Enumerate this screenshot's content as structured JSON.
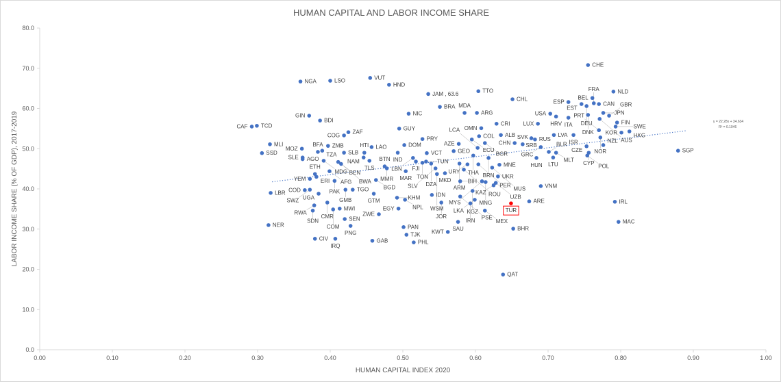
{
  "chart_data": {
    "type": "scatter",
    "title": "HUMAN CAPITAL AND LABOR INCOME SHARE",
    "xlabel": "HUMAN CAPITAL INDEX 2020",
    "ylabel": "LABOR INCOME SHARE (% OF GDP), 2017-2019",
    "xlim": [
      0,
      1.0
    ],
    "ylim": [
      0,
      80
    ],
    "x_ticks": [
      "0.00",
      "0.10",
      "0.20",
      "0.30",
      "0.40",
      "0.50",
      "0.60",
      "0.70",
      "0.80",
      "0.90",
      "1.00"
    ],
    "y_ticks": [
      "0.0",
      "10.0",
      "20.0",
      "30.0",
      "40.0",
      "50.0",
      "60.0",
      "70.0",
      "80.0"
    ],
    "grid": false,
    "point_color": "#4472c4",
    "highlight_color": "#ff0000",
    "trendline": {
      "slope": 22.28,
      "intercept": 34.634,
      "x_range": [
        0.32,
        0.89
      ],
      "equation": "y = 22.28x + 34.634",
      "r2": "R² = 0.1046",
      "style": "dotted"
    },
    "points": [
      {
        "label": "CHE",
        "x": 0.755,
        "y": 70.8
      },
      {
        "label": "NGA",
        "x": 0.359,
        "y": 66.7
      },
      {
        "label": "LSO",
        "x": 0.4,
        "y": 66.9
      },
      {
        "label": "VUT",
        "x": 0.455,
        "y": 67.6
      },
      {
        "label": "HND",
        "x": 0.481,
        "y": 65.9
      },
      {
        "label": "JAM , 63.6",
        "x": 0.535,
        "y": 63.6
      },
      {
        "label": "TTO",
        "x": 0.604,
        "y": 64.3
      },
      {
        "label": "CHL",
        "x": 0.651,
        "y": 62.3
      },
      {
        "label": "NLD",
        "x": 0.79,
        "y": 64.2
      },
      {
        "label": "BEL",
        "x": 0.761,
        "y": 62.6
      },
      {
        "label": "CAN",
        "x": 0.77,
        "y": 61.1
      },
      {
        "label": "ESP",
        "x": 0.728,
        "y": 61.6
      },
      {
        "label": "EST",
        "x": 0.746,
        "y": 61.1
      },
      {
        "label": "FRA",
        "x": 0.763,
        "y": 61.3
      },
      {
        "label": "DEU",
        "x": 0.753,
        "y": 60.6
      },
      {
        "label": "BRA",
        "x": 0.551,
        "y": 60.4
      },
      {
        "label": "MDA",
        "x": 0.585,
        "y": 58.9
      },
      {
        "label": "ARG",
        "x": 0.602,
        "y": 58.9
      },
      {
        "label": "NIC",
        "x": 0.508,
        "y": 58.7
      },
      {
        "label": "USA",
        "x": 0.703,
        "y": 58.7
      },
      {
        "label": "HRV",
        "x": 0.711,
        "y": 58.0
      },
      {
        "label": "ITA",
        "x": 0.728,
        "y": 57.7
      },
      {
        "label": "DNK",
        "x": 0.755,
        "y": 58.4
      },
      {
        "label": "JPN",
        "x": 0.776,
        "y": 58.9
      },
      {
        "label": "GBR",
        "x": 0.784,
        "y": 58.2
      },
      {
        "label": "AUS",
        "x": 0.771,
        "y": 57.4
      },
      {
        "label": "GIN",
        "x": 0.371,
        "y": 58.2
      },
      {
        "label": "BDI",
        "x": 0.386,
        "y": 57.0
      },
      {
        "label": "LUX",
        "x": 0.686,
        "y": 56.2
      },
      {
        "label": "CRI",
        "x": 0.629,
        "y": 56.2
      },
      {
        "label": "FIN",
        "x": 0.795,
        "y": 56.5
      },
      {
        "label": "SWE",
        "x": 0.793,
        "y": 55.5
      },
      {
        "label": "KOR",
        "x": 0.801,
        "y": 54.0
      },
      {
        "label": "HKG",
        "x": 0.812,
        "y": 54.3
      },
      {
        "label": "NOR",
        "x": 0.772,
        "y": 52.8
      },
      {
        "label": "TCD",
        "x": 0.299,
        "y": 55.7
      },
      {
        "label": "CAF",
        "x": 0.292,
        "y": 55.5
      },
      {
        "label": "GUY",
        "x": 0.495,
        "y": 55.0
      },
      {
        "label": "OMN",
        "x": 0.608,
        "y": 55.1
      },
      {
        "label": "PRT",
        "x": 0.77,
        "y": 54.6
      },
      {
        "label": "ZAF",
        "x": 0.425,
        "y": 54.1
      },
      {
        "label": "COG",
        "x": 0.419,
        "y": 53.3
      },
      {
        "label": "ALB",
        "x": 0.635,
        "y": 53.4
      },
      {
        "label": "LVA",
        "x": 0.708,
        "y": 53.4
      },
      {
        "label": "ISR",
        "x": 0.735,
        "y": 53.4
      },
      {
        "label": "COL",
        "x": 0.605,
        "y": 53.1
      },
      {
        "label": "ECU",
        "x": 0.595,
        "y": 52.3
      },
      {
        "label": "PRY",
        "x": 0.527,
        "y": 52.4
      },
      {
        "label": "SRB",
        "x": 0.677,
        "y": 52.6
      },
      {
        "label": "RUS",
        "x": 0.682,
        "y": 52.3
      },
      {
        "label": "CHN",
        "x": 0.654,
        "y": 51.4
      },
      {
        "label": "SVK",
        "x": 0.665,
        "y": 51.1
      },
      {
        "label": "MLI",
        "x": 0.317,
        "y": 51.1
      },
      {
        "label": "ZMB",
        "x": 0.397,
        "y": 50.7
      },
      {
        "label": "DOM",
        "x": 0.502,
        "y": 50.9
      },
      {
        "label": "AZE",
        "x": 0.577,
        "y": 51.2
      },
      {
        "label": "BGR",
        "x": 0.613,
        "y": 51.4
      },
      {
        "label": "GRC",
        "x": 0.69,
        "y": 50.4
      },
      {
        "label": "NZL",
        "x": 0.776,
        "y": 50.9
      },
      {
        "label": "MOZ",
        "x": 0.361,
        "y": 50.0
      },
      {
        "label": "LAO",
        "x": 0.457,
        "y": 50.4
      },
      {
        "label": "GEO",
        "x": 0.57,
        "y": 49.4
      },
      {
        "label": "LCA",
        "x": 0.603,
        "y": 50.2
      },
      {
        "label": "CZE",
        "x": 0.753,
        "y": 50.6
      },
      {
        "label": "BFA",
        "x": 0.383,
        "y": 49.2
      },
      {
        "label": "TZA",
        "x": 0.389,
        "y": 49.5
      },
      {
        "label": "SLB",
        "x": 0.419,
        "y": 49.0
      },
      {
        "label": "HTI",
        "x": 0.447,
        "y": 49.0
      },
      {
        "label": "IND",
        "x": 0.493,
        "y": 49.0
      },
      {
        "label": "VCT",
        "x": 0.533,
        "y": 48.9
      },
      {
        "label": "SSD",
        "x": 0.306,
        "y": 48.9
      },
      {
        "label": "SGP",
        "x": 0.879,
        "y": 49.5
      },
      {
        "label": "BLR",
        "x": 0.701,
        "y": 49.2
      },
      {
        "label": "MLT",
        "x": 0.711,
        "y": 49.0
      },
      {
        "label": "CYP",
        "x": 0.756,
        "y": 49.0
      },
      {
        "label": "POL",
        "x": 0.754,
        "y": 48.3
      },
      {
        "label": "SLE",
        "x": 0.362,
        "y": 47.8
      },
      {
        "label": "AGO",
        "x": 0.362,
        "y": 47.4
      },
      {
        "label": "NAM",
        "x": 0.446,
        "y": 47.8
      },
      {
        "label": "TLS",
        "x": 0.454,
        "y": 47.0
      },
      {
        "label": "MDG",
        "x": 0.391,
        "y": 47.0
      },
      {
        "label": "BEN",
        "x": 0.411,
        "y": 46.7
      },
      {
        "label": "BWA",
        "x": 0.415,
        "y": 46.2
      },
      {
        "label": "LBN",
        "x": 0.514,
        "y": 47.7
      },
      {
        "label": "THA",
        "x": 0.597,
        "y": 48.3
      },
      {
        "label": "BRN",
        "x": 0.618,
        "y": 47.7
      },
      {
        "label": "HUN",
        "x": 0.684,
        "y": 47.7
      },
      {
        "label": "LTU",
        "x": 0.707,
        "y": 47.8
      },
      {
        "label": "FJI",
        "x": 0.518,
        "y": 46.8
      },
      {
        "label": "TUN",
        "x": 0.532,
        "y": 46.8
      },
      {
        "label": "TON",
        "x": 0.527,
        "y": 46.5
      },
      {
        "label": "DZA",
        "x": 0.539,
        "y": 46.3
      },
      {
        "label": "BTN",
        "x": 0.475,
        "y": 45.6
      },
      {
        "label": "MMR",
        "x": 0.478,
        "y": 45.1
      },
      {
        "label": "ARM",
        "x": 0.578,
        "y": 46.3
      },
      {
        "label": "URY",
        "x": 0.589,
        "y": 46.1
      },
      {
        "label": "PER",
        "x": 0.604,
        "y": 46.1
      },
      {
        "label": "MNE",
        "x": 0.633,
        "y": 46.0
      },
      {
        "label": "MAR",
        "x": 0.504,
        "y": 44.4
      },
      {
        "label": "SLV",
        "x": 0.545,
        "y": 45.1
      },
      {
        "label": "WSM",
        "x": 0.547,
        "y": 43.7
      },
      {
        "label": "MKD",
        "x": 0.558,
        "y": 43.9
      },
      {
        "label": "ROU",
        "x": 0.584,
        "y": 44.8
      },
      {
        "label": "MUS",
        "x": 0.623,
        "y": 45.3
      },
      {
        "label": "ETH",
        "x": 0.379,
        "y": 43.7
      },
      {
        "label": "AFG",
        "x": 0.399,
        "y": 44.4
      },
      {
        "label": "ERI",
        "x": 0.381,
        "y": 43.0
      },
      {
        "label": "YEM",
        "x": 0.372,
        "y": 42.5
      },
      {
        "label": "PAK",
        "x": 0.406,
        "y": 42.0
      },
      {
        "label": "BGD",
        "x": 0.463,
        "y": 42.2
      },
      {
        "label": "MYS",
        "x": 0.609,
        "y": 41.9
      },
      {
        "label": "MNG",
        "x": 0.614,
        "y": 41.7
      },
      {
        "label": "UKR",
        "x": 0.631,
        "y": 43.1
      },
      {
        "label": "UZB",
        "x": 0.628,
        "y": 41.5
      },
      {
        "label": "KAZ",
        "x": 0.625,
        "y": 40.9
      },
      {
        "label": "BIH",
        "x": 0.579,
        "y": 41.9
      },
      {
        "label": "VNM",
        "x": 0.69,
        "y": 40.7
      },
      {
        "label": "KGZ",
        "x": 0.596,
        "y": 39.5
      },
      {
        "label": "LBR",
        "x": 0.318,
        "y": 39.0
      },
      {
        "label": "COD",
        "x": 0.365,
        "y": 39.7
      },
      {
        "label": "SWZ",
        "x": 0.372,
        "y": 39.8
      },
      {
        "label": "UGA",
        "x": 0.384,
        "y": 38.8
      },
      {
        "label": "GMB",
        "x": 0.421,
        "y": 39.8
      },
      {
        "label": "TGO",
        "x": 0.431,
        "y": 39.8
      },
      {
        "label": "GTM",
        "x": 0.46,
        "y": 38.8
      },
      {
        "label": "IDN",
        "x": 0.54,
        "y": 38.5
      },
      {
        "label": "KHM",
        "x": 0.492,
        "y": 37.8
      },
      {
        "label": "NPL",
        "x": 0.503,
        "y": 37.3
      },
      {
        "label": "PSE",
        "x": 0.579,
        "y": 38.1
      },
      {
        "label": "LKA",
        "x": 0.599,
        "y": 37.3
      },
      {
        "label": "IRL",
        "x": 0.792,
        "y": 36.8
      },
      {
        "label": "ARE",
        "x": 0.674,
        "y": 36.9
      },
      {
        "label": "TUR",
        "x": 0.649,
        "y": 36.4,
        "highlight": true
      },
      {
        "label": "JOR",
        "x": 0.553,
        "y": 36.6
      },
      {
        "label": "IRN",
        "x": 0.593,
        "y": 36.4
      },
      {
        "label": "CMR",
        "x": 0.396,
        "y": 36.6
      },
      {
        "label": "RWA",
        "x": 0.378,
        "y": 35.9
      },
      {
        "label": "MWI",
        "x": 0.413,
        "y": 35.1
      },
      {
        "label": "COM",
        "x": 0.404,
        "y": 34.9
      },
      {
        "label": "SDN",
        "x": 0.376,
        "y": 34.6
      },
      {
        "label": "EGY",
        "x": 0.494,
        "y": 35.1
      },
      {
        "label": "MEX",
        "x": 0.613,
        "y": 34.6
      },
      {
        "label": "ZWE",
        "x": 0.467,
        "y": 33.7
      },
      {
        "label": "SEN",
        "x": 0.42,
        "y": 32.5
      },
      {
        "label": "SAU",
        "x": 0.576,
        "y": 31.8
      },
      {
        "label": "MAC",
        "x": 0.797,
        "y": 31.8
      },
      {
        "label": "NER",
        "x": 0.315,
        "y": 31.0
      },
      {
        "label": "PNG",
        "x": 0.428,
        "y": 30.8
      },
      {
        "label": "PAN",
        "x": 0.501,
        "y": 30.5
      },
      {
        "label": "BHR",
        "x": 0.652,
        "y": 30.1
      },
      {
        "label": "KWT",
        "x": 0.562,
        "y": 29.3
      },
      {
        "label": "TJK",
        "x": 0.505,
        "y": 28.6
      },
      {
        "label": "CIV",
        "x": 0.379,
        "y": 27.6
      },
      {
        "label": "IRQ",
        "x": 0.407,
        "y": 27.6
      },
      {
        "label": "GAB",
        "x": 0.458,
        "y": 27.1
      },
      {
        "label": "PHL",
        "x": 0.515,
        "y": 26.7
      },
      {
        "label": "QAT",
        "x": 0.638,
        "y": 18.7
      }
    ]
  }
}
